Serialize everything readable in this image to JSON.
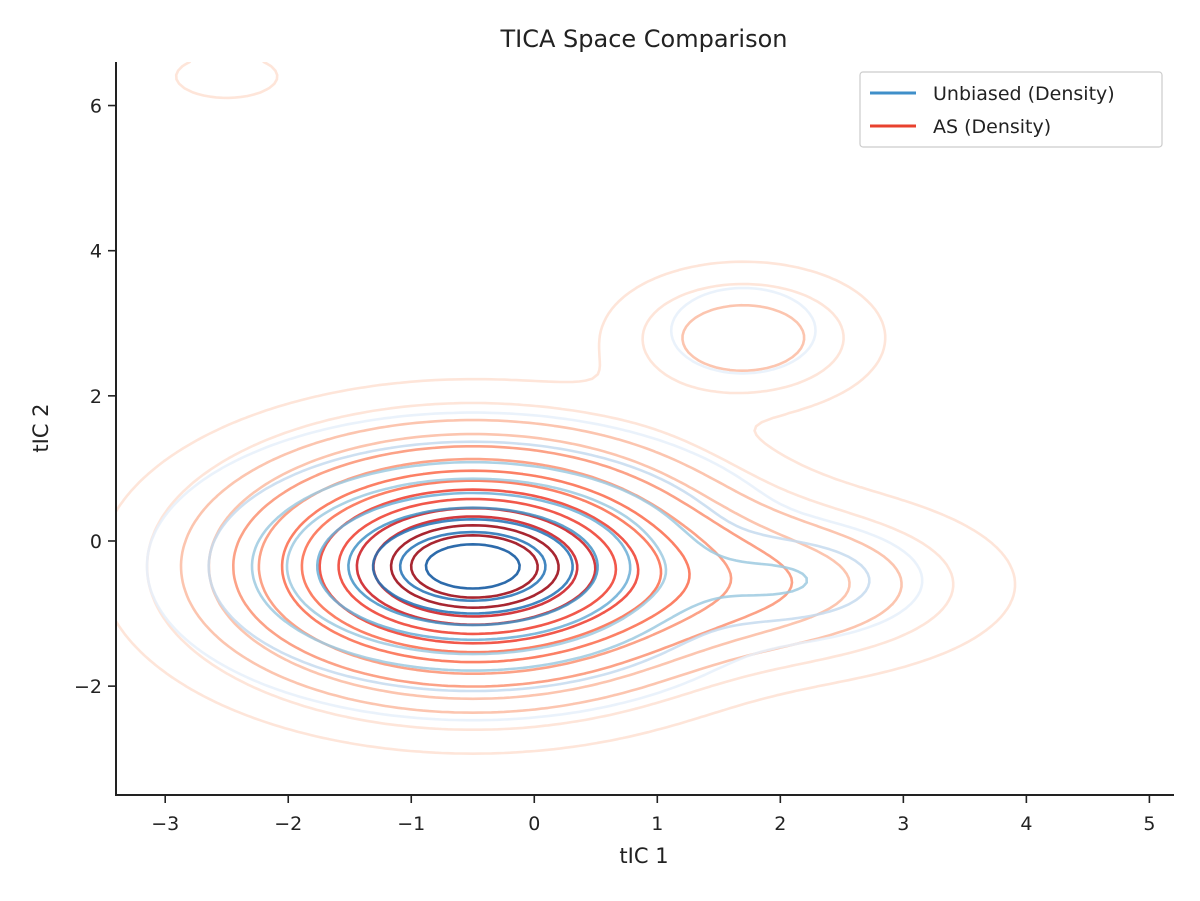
{
  "chart_data": {
    "type": "contour",
    "title": "TICA Space Comparison",
    "xlabel": "tIC 1",
    "ylabel": "tIC 2",
    "xlim": [
      -3.4,
      5.2
    ],
    "ylim": [
      -3.5,
      6.6
    ],
    "xticks": [
      -3,
      -2,
      -1,
      0,
      1,
      2,
      3,
      4,
      5
    ],
    "xtick_labels": [
      "−3",
      "−2",
      "−1",
      "0",
      "1",
      "2",
      "3",
      "4",
      "5"
    ],
    "yticks": [
      -2,
      0,
      2,
      4,
      6
    ],
    "ytick_labels": [
      "−2",
      "0",
      "2",
      "4",
      "6"
    ],
    "grid": false,
    "legend_position": "top-right",
    "series": [
      {
        "name": "Unbiased (Density)",
        "legend_color": "#3f8fc9",
        "contour_colors": [
          "#e6f0fa",
          "#c6dbef",
          "#9ecae1",
          "#6baed6",
          "#4292c6",
          "#2171b5",
          "#08519c"
        ],
        "components": [
          {
            "x": -0.5,
            "y": -0.35,
            "sx": 1.0,
            "sy": 0.8,
            "w": 1.0
          },
          {
            "x": 2.1,
            "y": -0.55,
            "sx": 0.55,
            "sy": 0.4,
            "w": 0.18
          },
          {
            "x": 1.7,
            "y": 2.9,
            "sx": 0.45,
            "sy": 0.45,
            "w": 0.07
          }
        ],
        "levels": [
          0.03,
          0.1,
          0.2,
          0.32,
          0.45,
          0.6,
          0.72,
          0.84,
          0.93
        ]
      },
      {
        "name": "AS (Density)",
        "legend_color": "#e8412e",
        "contour_colors": [
          "#fee0d2",
          "#fcbba1",
          "#fc9272",
          "#fb6a4a",
          "#ef3b2c",
          "#cb181d",
          "#99000d"
        ],
        "components": [
          {
            "x": -0.5,
            "y": -0.35,
            "sx": 1.0,
            "sy": 0.85,
            "w": 1.0
          },
          {
            "x": 1.9,
            "y": -0.6,
            "sx": 0.9,
            "sy": 0.6,
            "w": 0.12
          },
          {
            "x": 1.7,
            "y": 2.8,
            "sx": 0.55,
            "sy": 0.5,
            "w": 0.09
          },
          {
            "x": -2.5,
            "y": 6.4,
            "sx": 0.35,
            "sy": 0.25,
            "w": 0.02
          }
        ],
        "levels": [
          0.01,
          0.03,
          0.06,
          0.1,
          0.15,
          0.22,
          0.3,
          0.38,
          0.46,
          0.55,
          0.64,
          0.72,
          0.8,
          0.88
        ]
      }
    ]
  }
}
